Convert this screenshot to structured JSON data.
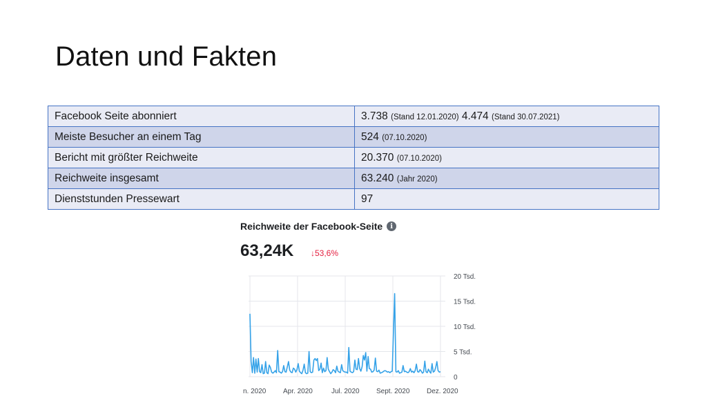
{
  "slide": {
    "title": "Daten und Fakten"
  },
  "facts_table": {
    "rows": [
      {
        "label": "Facebook Seite abonniert",
        "value_1": "3.738",
        "note_1": "(Stand 12.01.2020)",
        "value_2": "4.474",
        "note_2": "(Stand 30.07.2021)"
      },
      {
        "label": "Meiste Besucher an einem Tag",
        "value": "524",
        "note": "(07.10.2020)"
      },
      {
        "label": "Bericht mit größter Reichweite",
        "value": "20.370",
        "note": "(07.10.2020)"
      },
      {
        "label": "Reichweite insgesamt",
        "value": "63.240",
        "note": "(Jahr 2020)"
      },
      {
        "label": "Dienststunden Pressewart",
        "value": "97",
        "note": ""
      }
    ]
  },
  "facebook_card": {
    "title": "Reichweite der Facebook-Seite",
    "info_icon": "info-icon",
    "total": "63,24K",
    "change": "↓53,6%",
    "colors": {
      "line": "#35a2e8",
      "change": "#e41e3f",
      "grid": "#e4e6eb"
    }
  },
  "chart_data": {
    "type": "line",
    "title": "",
    "xlabel": "",
    "ylabel": "",
    "x_tick_labels": [
      "n. 2020",
      "Apr. 2020",
      "Jul. 2020",
      "Sept. 2020",
      "Dez. 2020"
    ],
    "y_tick_labels": [
      "20 Tsd.",
      "15 Tsd.",
      "10 Tsd.",
      "5 Tsd.",
      "0"
    ],
    "y_tick_values": [
      20000,
      15000,
      10000,
      5000,
      0
    ],
    "ylim": [
      0,
      20000
    ],
    "grid": true,
    "series": [
      {
        "values": [
          12500,
          3000,
          800,
          3800,
          700,
          3500,
          900,
          3600,
          1000,
          800,
          2400,
          600,
          700,
          3000,
          800,
          600,
          2300,
          1800,
          900,
          700,
          900,
          1200,
          800,
          5200,
          1000,
          900,
          700,
          1000,
          2200,
          1000,
          900,
          2000,
          3000,
          1300,
          900,
          800,
          1700,
          1500,
          900,
          1400,
          2600,
          1100,
          800,
          600,
          1300,
          2500,
          800,
          600,
          700,
          5000,
          1000,
          800,
          900,
          3300,
          3600,
          3200,
          3600,
          1200,
          1500,
          2700,
          800,
          1700,
          1000,
          1200,
          3800,
          1500,
          1000,
          600,
          900,
          1400,
          1200,
          800,
          2100,
          1100,
          900,
          800,
          2400,
          1200,
          1000,
          900,
          900,
          700,
          5800,
          1100,
          900,
          800,
          1000,
          3300,
          1500,
          1400,
          3600,
          1600,
          1100,
          2000,
          4200,
          3300,
          4800,
          1100,
          4000,
          1600,
          1500,
          900,
          1000,
          1300,
          3700,
          1100,
          1000,
          1300,
          700,
          800,
          900,
          1100,
          1200,
          1100,
          900,
          1000,
          800,
          1000,
          1100,
          9100,
          16500,
          1000,
          900,
          1200,
          700,
          800,
          900,
          2200,
          1000,
          1100,
          900,
          800,
          1000,
          1600,
          900,
          1100,
          800,
          1200,
          2500,
          1000,
          900,
          1400,
          1100,
          700,
          900,
          3100,
          1000,
          800,
          1500,
          1000,
          700,
          2600,
          900,
          1100,
          1800,
          3000,
          1200,
          900,
          1000
        ]
      }
    ]
  }
}
